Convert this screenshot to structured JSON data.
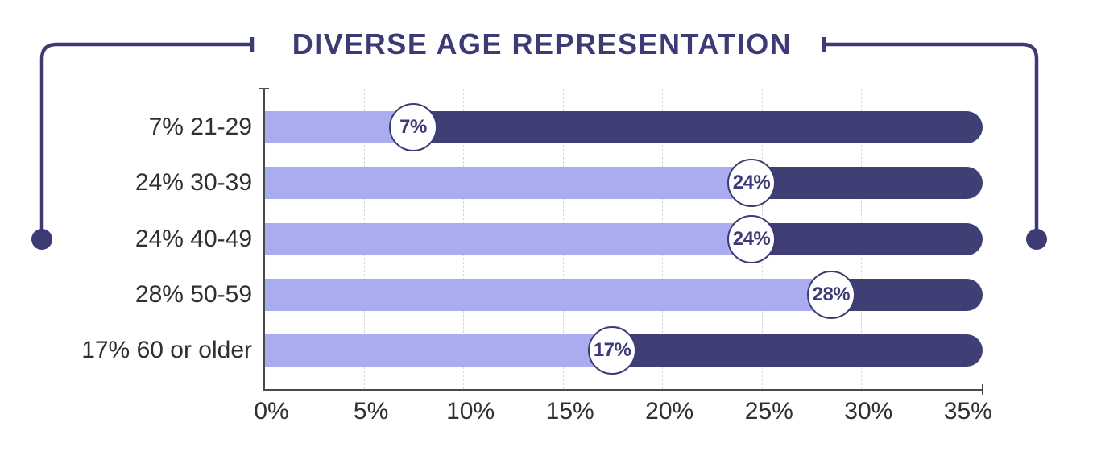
{
  "title": "DIVERSE AGE REPRESENTATION",
  "colors": {
    "navy": "#3c3b76",
    "bar_dark": "#3f3e75",
    "bar_light": "#a9adf0",
    "gridline": "#d8d8d8",
    "axis": "#4a4a4a",
    "label_text": "#303030",
    "badge_background": "#ffffff"
  },
  "chart_data": {
    "type": "bar",
    "orientation": "horizontal",
    "title": "DIVERSE AGE REPRESENTATION",
    "categories": [
      "21-29",
      "30-39",
      "40-49",
      "50-59",
      "60 or older"
    ],
    "values": [
      7,
      24,
      24,
      28,
      17
    ],
    "row_labels": [
      "7% 21-29",
      "24% 30-39",
      "24% 40-49",
      "28% 50-59",
      "17% 60 or older"
    ],
    "badge_labels": [
      "7%",
      "24%",
      "24%",
      "28%",
      "17%"
    ],
    "track_max_percent": 35,
    "x_ticks": [
      "0%",
      "5%",
      "10%",
      "15%",
      "20%",
      "25%",
      "30%",
      "35%"
    ],
    "x_tick_values": [
      0,
      5,
      10,
      15,
      20,
      25,
      30,
      35
    ],
    "xlim": [
      0,
      35
    ],
    "xlabel": "",
    "ylabel": "",
    "grid": "dashed-vertical",
    "legend": "none"
  }
}
